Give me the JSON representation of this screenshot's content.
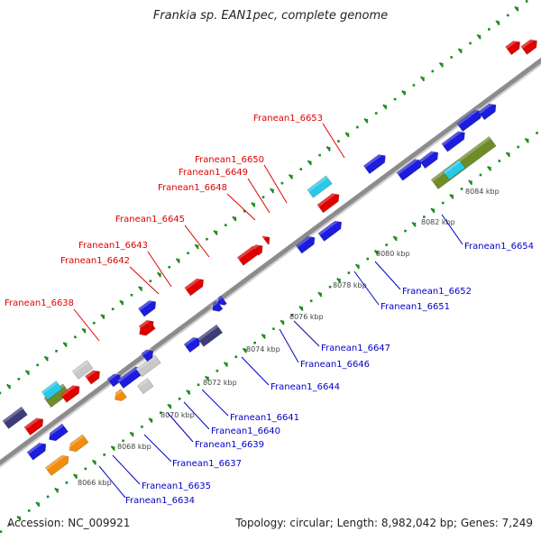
{
  "title": "Frankia sp. EAN1pec, complete genome",
  "footer": {
    "accession": "Accession: NC_009921",
    "summary": "Topology: circular; Length: 8,982,042 bp; Genes: 7,249"
  },
  "colors": {
    "backbone": "#8c8c8c",
    "gc_ticks": "#1c8c1c",
    "gene_blue": "#1c1cdc",
    "gene_red": "#e00000",
    "gene_gray": "#c8c8c8",
    "gene_cyan": "#28c8e8",
    "gene_olive": "#6e8c28",
    "gene_orange": "#f28c0a",
    "gene_navy": "#3c3c78",
    "label_red": "#e00000",
    "label_blue": "#0000c8"
  },
  "tick_labels": [
    "8066 kbp",
    "8068 kbp",
    "8070 kbp",
    "8072 kbp",
    "8074 kbp",
    "8076 kbp",
    "8078 kbp",
    "8080 kbp",
    "8082 kbp",
    "8084 kbp"
  ],
  "gene_labels_top": [
    "Franean1_6638",
    "Franean1_6642",
    "Franean1_6643",
    "Franean1_6645",
    "Franean1_6648",
    "Franean1_6649",
    "Franean1_6650",
    "Franean1_6653"
  ],
  "gene_labels_bottom": [
    "Franean1_6634",
    "Franean1_6635",
    "Franean1_6637",
    "Franean1_6639",
    "Franean1_6640",
    "Franean1_6641",
    "Franean1_6644",
    "Franean1_6646",
    "Franean1_6647",
    "Franean1_6651",
    "Franean1_6652",
    "Franean1_6654"
  ]
}
